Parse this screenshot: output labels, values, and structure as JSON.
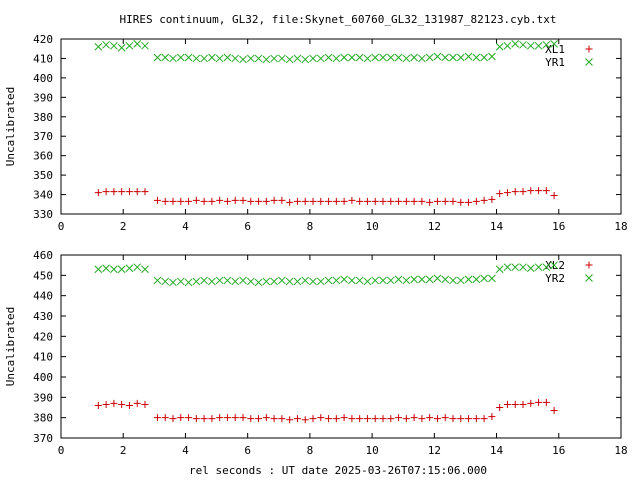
{
  "title": "HIRES continuum, GL32, file:Skynet_60760_GL32_131987_82123.cyb.txt",
  "xlabel": "rel seconds : UT date 2025-03-26T07:15:06.000",
  "colors": {
    "xl": "#cc0000",
    "yr": "#22aa22"
  },
  "chart_data": [
    {
      "type": "scatter",
      "ylabel": "Uncalibrated",
      "xlim": [
        0,
        18
      ],
      "ylim": [
        330,
        420
      ],
      "xticks": [
        0,
        2,
        4,
        6,
        8,
        10,
        12,
        14,
        16,
        18
      ],
      "yticks": [
        330,
        340,
        350,
        360,
        370,
        380,
        390,
        400,
        410,
        420
      ],
      "legend": "top-right",
      "series": [
        {
          "name": "XL1",
          "marker": "plus",
          "color": "#cc0000",
          "x": [
            1.2,
            1.45,
            1.7,
            1.95,
            2.2,
            2.45,
            2.7,
            3.1,
            3.35,
            3.6,
            3.85,
            4.1,
            4.35,
            4.6,
            4.85,
            5.1,
            5.35,
            5.6,
            5.85,
            6.1,
            6.35,
            6.6,
            6.85,
            7.1,
            7.35,
            7.6,
            7.85,
            8.1,
            8.35,
            8.6,
            8.85,
            9.1,
            9.35,
            9.6,
            9.85,
            10.1,
            10.35,
            10.6,
            10.85,
            11.1,
            11.35,
            11.6,
            11.85,
            12.1,
            12.35,
            12.6,
            12.85,
            13.1,
            13.35,
            13.6,
            13.85,
            14.1,
            14.35,
            14.6,
            14.85,
            15.1,
            15.35,
            15.6,
            15.85
          ],
          "y": [
            341,
            341.5,
            341.5,
            341.5,
            341.5,
            341.5,
            341.5,
            337,
            336.5,
            336.5,
            336.5,
            336.5,
            337,
            336.5,
            336.5,
            337,
            336.5,
            337,
            337,
            336.5,
            336.5,
            336.5,
            337,
            337,
            336,
            336.5,
            336.5,
            336.5,
            336.5,
            336.5,
            336.5,
            336.5,
            337,
            336.5,
            336.5,
            336.5,
            336.5,
            336.5,
            336.5,
            336.5,
            336.5,
            336.5,
            336,
            336.5,
            336.5,
            336.5,
            336,
            336,
            336.5,
            337,
            337.5,
            340.5,
            341,
            341.5,
            341.5,
            342,
            342,
            342,
            339.5
          ]
        },
        {
          "name": "YR1",
          "marker": "cross",
          "color": "#22aa22",
          "x": [
            1.2,
            1.45,
            1.7,
            1.95,
            2.2,
            2.45,
            2.7,
            3.1,
            3.35,
            3.6,
            3.85,
            4.1,
            4.35,
            4.6,
            4.85,
            5.1,
            5.35,
            5.6,
            5.85,
            6.1,
            6.35,
            6.6,
            6.85,
            7.1,
            7.35,
            7.6,
            7.85,
            8.1,
            8.35,
            8.6,
            8.85,
            9.1,
            9.35,
            9.6,
            9.85,
            10.1,
            10.35,
            10.6,
            10.85,
            11.1,
            11.35,
            11.6,
            11.85,
            12.1,
            12.35,
            12.6,
            12.85,
            13.1,
            13.35,
            13.6,
            13.85,
            14.1,
            14.35,
            14.6,
            14.85,
            15.1,
            15.35,
            15.6,
            15.85
          ],
          "y": [
            416,
            417,
            416.5,
            415.5,
            416.5,
            417.5,
            416.5,
            410.5,
            410.5,
            410,
            410.5,
            410.5,
            410,
            410,
            410.5,
            410,
            410.5,
            410,
            409.5,
            410,
            410,
            409.5,
            410,
            410,
            409.5,
            410,
            409.5,
            410,
            410,
            410.5,
            410,
            410.5,
            410.5,
            410.5,
            410,
            410.5,
            410.5,
            410.5,
            410.5,
            410,
            410.5,
            410,
            410.5,
            411,
            410.5,
            410.5,
            410.5,
            411,
            410.5,
            410.5,
            411,
            416,
            416.5,
            417.5,
            417,
            416.5,
            416.5,
            417,
            417.5
          ]
        }
      ]
    },
    {
      "type": "scatter",
      "ylabel": "Uncalibrated",
      "xlim": [
        0,
        18
      ],
      "ylim": [
        370,
        460
      ],
      "xticks": [
        0,
        2,
        4,
        6,
        8,
        10,
        12,
        14,
        16,
        18
      ],
      "yticks": [
        370,
        380,
        390,
        400,
        410,
        420,
        430,
        440,
        450,
        460
      ],
      "legend": "top-right",
      "series": [
        {
          "name": "XL2",
          "marker": "plus",
          "color": "#cc0000",
          "x": [
            1.2,
            1.45,
            1.7,
            1.95,
            2.2,
            2.45,
            2.7,
            3.1,
            3.35,
            3.6,
            3.85,
            4.1,
            4.35,
            4.6,
            4.85,
            5.1,
            5.35,
            5.6,
            5.85,
            6.1,
            6.35,
            6.6,
            6.85,
            7.1,
            7.35,
            7.6,
            7.85,
            8.1,
            8.35,
            8.6,
            8.85,
            9.1,
            9.35,
            9.6,
            9.85,
            10.1,
            10.35,
            10.6,
            10.85,
            11.1,
            11.35,
            11.6,
            11.85,
            12.1,
            12.35,
            12.6,
            12.85,
            13.1,
            13.35,
            13.6,
            13.85,
            14.1,
            14.35,
            14.6,
            14.85,
            15.1,
            15.35,
            15.6,
            15.85
          ],
          "y": [
            386,
            386.5,
            387,
            386.5,
            386,
            387,
            386.5,
            380,
            380,
            379.5,
            380,
            380,
            379.5,
            379.5,
            379.5,
            380,
            380,
            380,
            380,
            379.5,
            379.5,
            380,
            379.5,
            379.5,
            379,
            379.5,
            379,
            379.5,
            380,
            379.5,
            379.5,
            380,
            379.5,
            379.5,
            379.5,
            379.5,
            379.5,
            379.5,
            380,
            379.5,
            380,
            379.5,
            380,
            379.5,
            380,
            379.5,
            379.5,
            379.5,
            379.5,
            379.5,
            380.5,
            385,
            386.5,
            386.5,
            386.5,
            387,
            387.5,
            387.5,
            383.5
          ]
        },
        {
          "name": "YR2",
          "marker": "cross",
          "color": "#22aa22",
          "x": [
            1.2,
            1.45,
            1.7,
            1.95,
            2.2,
            2.45,
            2.7,
            3.1,
            3.35,
            3.6,
            3.85,
            4.1,
            4.35,
            4.6,
            4.85,
            5.1,
            5.35,
            5.6,
            5.85,
            6.1,
            6.35,
            6.6,
            6.85,
            7.1,
            7.35,
            7.6,
            7.85,
            8.1,
            8.35,
            8.6,
            8.85,
            9.1,
            9.35,
            9.6,
            9.85,
            10.1,
            10.35,
            10.6,
            10.85,
            11.1,
            11.35,
            11.6,
            11.85,
            12.1,
            12.35,
            12.6,
            12.85,
            13.1,
            13.35,
            13.6,
            13.85,
            14.1,
            14.35,
            14.6,
            14.85,
            15.1,
            15.35,
            15.6,
            15.85
          ],
          "y": [
            453,
            453.5,
            453,
            453,
            453.5,
            454,
            453,
            447.5,
            447,
            446.5,
            447,
            446.5,
            447,
            447.5,
            447,
            447.5,
            447.5,
            447,
            447.5,
            447,
            446.5,
            447,
            447,
            447.5,
            447,
            447,
            447.5,
            447,
            447,
            447.5,
            447.5,
            448,
            447.5,
            447.5,
            447,
            447.5,
            447.5,
            447.5,
            448,
            447.5,
            448,
            448,
            448,
            448.5,
            448,
            447.5,
            447.5,
            448,
            448,
            448.5,
            448.5,
            453,
            454,
            454,
            454,
            453.5,
            454,
            454,
            455
          ]
        }
      ]
    }
  ]
}
